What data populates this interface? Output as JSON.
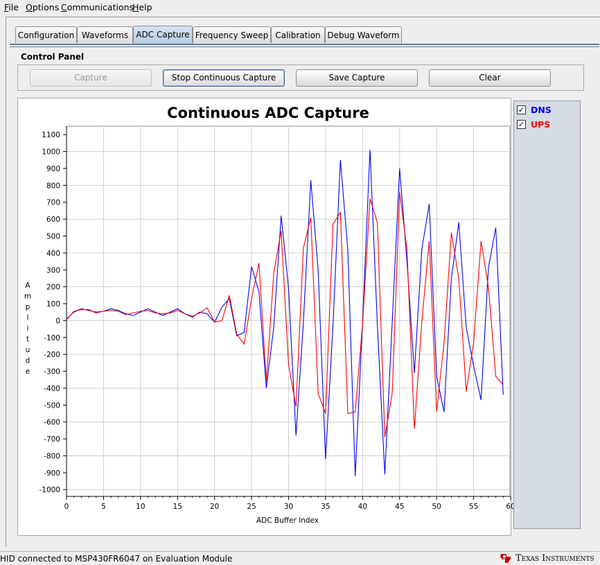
{
  "menu": [
    {
      "underline": "F",
      "rest": "ile"
    },
    {
      "underline": "O",
      "rest": "ptions"
    },
    {
      "underline": "C",
      "rest": "ommunications"
    },
    {
      "underline": "H",
      "rest": "elp"
    }
  ],
  "tabs": [
    "Configuration",
    "Waveforms",
    "ADC Capture",
    "Frequency Sweep",
    "Calibration",
    "Debug Waveform"
  ],
  "active_tab": "ADC Capture",
  "control_panel": {
    "title": "Control Panel",
    "capture_label": "Capture",
    "stop_label": "Stop Continuous Capture",
    "save_label": "Save Capture",
    "clear_label": "Clear"
  },
  "legend": {
    "dns": {
      "label": "DNS",
      "checked": true,
      "color": "#0000ff"
    },
    "ups": {
      "label": "UPS",
      "checked": true,
      "color": "#ff0000"
    }
  },
  "status": {
    "text": "HID connected to MSP430FR6047 on Evaluation Module",
    "brand": "Texas Instruments"
  },
  "chart_data": {
    "type": "line",
    "title": "Continuous ADC Capture",
    "xlabel": "ADC Buffer Index",
    "ylabel": "Amplitude",
    "xlim": [
      0,
      60
    ],
    "ylim": [
      -1000,
      1100
    ],
    "xticks": [
      0,
      5,
      10,
      15,
      20,
      25,
      30,
      35,
      40,
      45,
      50,
      55,
      60
    ],
    "yticks": [
      1100,
      1000,
      900,
      800,
      700,
      600,
      500,
      400,
      300,
      200,
      100,
      0,
      -100,
      -200,
      -300,
      -400,
      -500,
      -600,
      -700,
      -800,
      -900,
      -1000
    ],
    "grid": true,
    "x": [
      0,
      1,
      2,
      3,
      4,
      5,
      6,
      7,
      8,
      9,
      10,
      11,
      12,
      13,
      14,
      15,
      16,
      17,
      18,
      19,
      20,
      21,
      22,
      23,
      24,
      25,
      26,
      27,
      28,
      29,
      30,
      31,
      32,
      33,
      34,
      35,
      36,
      37,
      38,
      39,
      40,
      41,
      42,
      43,
      44,
      45,
      46,
      47,
      48,
      49,
      50,
      51,
      52,
      53,
      54,
      55,
      56,
      57,
      58,
      59
    ],
    "series": [
      {
        "name": "DNS",
        "color": "#0000ff",
        "values": [
          10,
          50,
          70,
          60,
          50,
          55,
          70,
          60,
          40,
          30,
          50,
          70,
          50,
          30,
          50,
          70,
          40,
          20,
          50,
          40,
          -10,
          80,
          130,
          -90,
          -70,
          320,
          170,
          -400,
          -40,
          620,
          190,
          -680,
          -10,
          830,
          300,
          -820,
          -30,
          950,
          420,
          -920,
          -10,
          1010,
          -30,
          -910,
          -10,
          900,
          350,
          -310,
          420,
          690,
          -330,
          -540,
          250,
          580,
          -40,
          -270,
          -470,
          310,
          550,
          -440
        ]
      },
      {
        "name": "UPS",
        "color": "#ff0000",
        "values": [
          5,
          55,
          65,
          65,
          45,
          55,
          60,
          55,
          35,
          45,
          55,
          60,
          45,
          40,
          45,
          60,
          40,
          25,
          45,
          75,
          -10,
          0,
          150,
          -80,
          -140,
          130,
          340,
          -360,
          280,
          530,
          -260,
          -510,
          430,
          610,
          -430,
          -550,
          570,
          640,
          -550,
          -540,
          -20,
          720,
          580,
          -690,
          -430,
          760,
          420,
          -640,
          -10,
          470,
          -540,
          -130,
          520,
          250,
          -420,
          -130,
          470,
          200,
          -330,
          -380
        ]
      }
    ]
  }
}
